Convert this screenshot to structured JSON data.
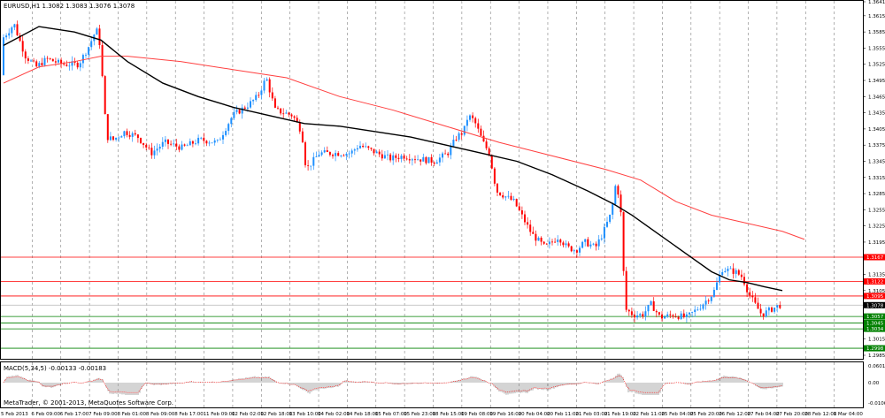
{
  "header": {
    "symbol": "EURUSD,H1",
    "ohlc": "1.3082 1.3083 1.3076 1.3078"
  },
  "macd_panel": {
    "label": "MACD(5,34,5)",
    "values": "-0.00133 -0.00183",
    "scale_labels": [
      "0.0601",
      "0.00",
      "-0.0106"
    ]
  },
  "footer": {
    "copyright": "MetaTrader, © 2001-2013, MetaQuotes Software Corp."
  },
  "colors": {
    "background": "#ffffff",
    "bull": "#1e90ff",
    "bear": "#ff0000",
    "ma_fast": "#000000",
    "ma_slow": "#ff4040",
    "resistance_line": "#ff0000",
    "support_line": "#008000",
    "grid": "#808080",
    "macd_hist": "#a9a9a9",
    "macd_signal": "#ff0000",
    "resistance_label_bg": "#ff0000",
    "support_label_bg": "#008000",
    "current_price_bg": "#000000"
  },
  "chart_data": {
    "type": "candlestick",
    "symbol": "EURUSD",
    "timeframe": "H1",
    "x_ticks": [
      "5 Feb 2013",
      "6 Feb 09:00",
      "6 Feb 17:00",
      "7 Feb 09:00",
      "8 Feb 01:00",
      "8 Feb 09:00",
      "8 Feb 17:00",
      "11 Feb 09:00",
      "12 Feb 02:00",
      "12 Feb 18:00",
      "13 Feb 10:00",
      "14 Feb 02:00",
      "14 Feb 18:00",
      "15 Feb 07:00",
      "15 Feb 23:00",
      "18 Feb 15:00",
      "19 Feb 08:00",
      "19 Feb 16:00",
      "20 Feb 04:00",
      "20 Feb 11:00",
      "21 Feb 03:00",
      "21 Feb 19:00",
      "22 Feb 11:00",
      "25 Feb 04:00",
      "25 Feb 20:00",
      "26 Feb 12:00",
      "27 Feb 04:00",
      "27 Feb 20:00",
      "28 Feb 12:00",
      "1 Mar 04:00"
    ],
    "y_ticks": [
      1.3641,
      1.3615,
      1.3585,
      1.3555,
      1.3525,
      1.3495,
      1.3465,
      1.3435,
      1.3405,
      1.3375,
      1.3345,
      1.3315,
      1.3285,
      1.3255,
      1.3225,
      1.3195,
      1.3165,
      1.3135,
      1.3105,
      1.3075,
      1.3045,
      1.3015,
      1.2985
    ],
    "ylim": [
      1.2985,
      1.3641
    ],
    "grid": "vertical dashed",
    "price_anchors": [
      [
        0,
        1.3505
      ],
      [
        3,
        1.3575
      ],
      [
        8,
        1.3585
      ],
      [
        15,
        1.36
      ],
      [
        20,
        1.3575
      ],
      [
        28,
        1.354
      ],
      [
        40,
        1.352
      ],
      [
        52,
        1.3535
      ],
      [
        70,
        1.3525
      ],
      [
        88,
        1.3525
      ],
      [
        100,
        1.356
      ],
      [
        108,
        1.359
      ],
      [
        113,
        1.3555
      ],
      [
        116,
        1.346
      ],
      [
        120,
        1.339
      ],
      [
        127,
        1.3385
      ],
      [
        140,
        1.34
      ],
      [
        155,
        1.339
      ],
      [
        170,
        1.336
      ],
      [
        185,
        1.338
      ],
      [
        205,
        1.337
      ],
      [
        225,
        1.3385
      ],
      [
        245,
        1.338
      ],
      [
        262,
        1.343
      ],
      [
        280,
        1.345
      ],
      [
        290,
        1.3465
      ],
      [
        300,
        1.35
      ],
      [
        310,
        1.344
      ],
      [
        330,
        1.343
      ],
      [
        340,
        1.34
      ],
      [
        345,
        1.333
      ],
      [
        360,
        1.336
      ],
      [
        380,
        1.336
      ],
      [
        395,
        1.336
      ],
      [
        405,
        1.3375
      ],
      [
        425,
        1.336
      ],
      [
        440,
        1.335
      ],
      [
        455,
        1.3355
      ],
      [
        470,
        1.335
      ],
      [
        490,
        1.3345
      ],
      [
        505,
        1.336
      ],
      [
        515,
        1.339
      ],
      [
        523,
        1.34
      ],
      [
        528,
        1.343
      ],
      [
        535,
        1.342
      ],
      [
        545,
        1.338
      ],
      [
        552,
        1.336
      ],
      [
        560,
        1.329
      ],
      [
        570,
        1.328
      ],
      [
        580,
        1.327
      ],
      [
        590,
        1.324
      ],
      [
        600,
        1.321
      ],
      [
        615,
        1.3185
      ],
      [
        630,
        1.3205
      ],
      [
        640,
        1.3185
      ],
      [
        650,
        1.318
      ],
      [
        660,
        1.3195
      ],
      [
        672,
        1.3185
      ],
      [
        680,
        1.321
      ],
      [
        690,
        1.325
      ],
      [
        695,
        1.3305
      ],
      [
        700,
        1.327
      ],
      [
        703,
        1.316
      ],
      [
        706,
        1.307
      ],
      [
        715,
        1.306
      ],
      [
        725,
        1.306
      ],
      [
        735,
        1.308
      ],
      [
        745,
        1.3055
      ],
      [
        760,
        1.306
      ],
      [
        775,
        1.3055
      ],
      [
        790,
        1.3075
      ],
      [
        805,
        1.31
      ],
      [
        815,
        1.3145
      ],
      [
        830,
        1.314
      ],
      [
        838,
        1.313
      ],
      [
        845,
        1.31
      ],
      [
        852,
        1.308
      ],
      [
        860,
        1.306
      ],
      [
        870,
        1.307
      ],
      [
        880,
        1.3078
      ]
    ],
    "ma_fast": [
      [
        0,
        1.356
      ],
      [
        40,
        1.3595
      ],
      [
        80,
        1.3585
      ],
      [
        110,
        1.357
      ],
      [
        140,
        1.353
      ],
      [
        180,
        1.349
      ],
      [
        220,
        1.3465
      ],
      [
        260,
        1.3445
      ],
      [
        300,
        1.343
      ],
      [
        340,
        1.3415
      ],
      [
        380,
        1.341
      ],
      [
        420,
        1.34
      ],
      [
        460,
        1.339
      ],
      [
        500,
        1.3375
      ],
      [
        540,
        1.336
      ],
      [
        580,
        1.3345
      ],
      [
        620,
        1.332
      ],
      [
        660,
        1.329
      ],
      [
        690,
        1.3265
      ],
      [
        710,
        1.3245
      ],
      [
        740,
        1.321
      ],
      [
        770,
        1.3175
      ],
      [
        800,
        1.314
      ],
      [
        820,
        1.3125
      ],
      [
        840,
        1.312
      ],
      [
        860,
        1.3112
      ],
      [
        880,
        1.3105
      ]
    ],
    "ma_slow": [
      [
        0,
        1.349
      ],
      [
        40,
        1.352
      ],
      [
        80,
        1.353
      ],
      [
        110,
        1.354
      ],
      [
        140,
        1.354
      ],
      [
        200,
        1.353
      ],
      [
        260,
        1.3515
      ],
      [
        320,
        1.35
      ],
      [
        380,
        1.3465
      ],
      [
        440,
        1.344
      ],
      [
        500,
        1.341
      ],
      [
        560,
        1.338
      ],
      [
        620,
        1.3355
      ],
      [
        680,
        1.333
      ],
      [
        720,
        1.331
      ],
      [
        760,
        1.327
      ],
      [
        800,
        1.3245
      ],
      [
        840,
        1.323
      ],
      [
        880,
        1.3215
      ],
      [
        905,
        1.32
      ]
    ],
    "horizontal_levels": [
      {
        "label": "1.3167",
        "price": 1.3167,
        "kind": "resistance"
      },
      {
        "label": "1.3122",
        "price": 1.3122,
        "kind": "resistance"
      },
      {
        "label": "1.3095",
        "price": 1.3095,
        "kind": "resistance"
      },
      {
        "label": "1.3078",
        "price": 1.3078,
        "kind": "current"
      },
      {
        "label": "1.3057",
        "price": 1.3057,
        "kind": "support"
      },
      {
        "label": "1.3045",
        "price": 1.3045,
        "kind": "support"
      },
      {
        "label": "1.3034",
        "price": 1.3034,
        "kind": "support"
      },
      {
        "label": "1.2998",
        "price": 1.2998,
        "kind": "support"
      }
    ]
  }
}
